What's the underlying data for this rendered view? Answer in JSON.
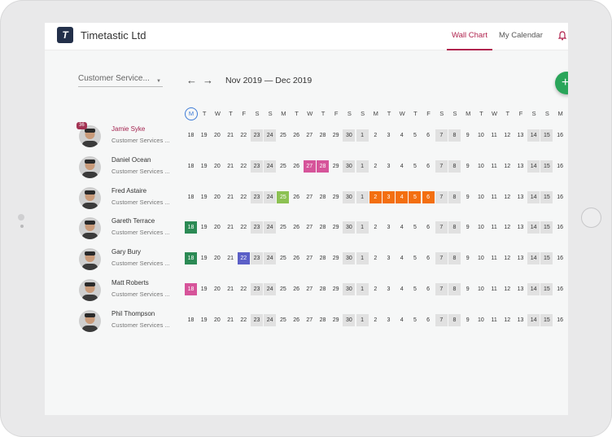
{
  "app": {
    "brand": "Timetastic Ltd",
    "logo_letter": "T"
  },
  "nav": {
    "wall_chart": "Wall Chart",
    "my_calendar": "My Calendar"
  },
  "toolbar": {
    "filter": "Customer Service...",
    "prev_icon": "arrow-left-icon",
    "next_icon": "arrow-right-icon",
    "range": "Nov 2019 — Dec 2019",
    "add_icon": "plus-icon"
  },
  "day_letters": [
    "M",
    "T",
    "W",
    "T",
    "F",
    "S",
    "S",
    "M",
    "T",
    "W",
    "T",
    "F",
    "S",
    "S",
    "M",
    "T",
    "W",
    "T",
    "F",
    "S",
    "S",
    "M",
    "T",
    "W",
    "T",
    "F",
    "S",
    "S",
    "M"
  ],
  "dates": [
    "18",
    "19",
    "20",
    "21",
    "22",
    "23",
    "24",
    "25",
    "26",
    "27",
    "28",
    "29",
    "30",
    "1",
    "2",
    "3",
    "4",
    "5",
    "6",
    "7",
    "8",
    "9",
    "10",
    "11",
    "12",
    "13",
    "14",
    "15",
    "16"
  ],
  "colors": {
    "accent": "#b0234e",
    "green": "#2b8a54",
    "light_green": "#8cc152",
    "pink": "#d6549a",
    "purple": "#5b5fc7",
    "orange": "#f36f10",
    "weekend": "#e1e1e1"
  },
  "people": [
    {
      "name": "Jamie Syke",
      "dept": "Customer Services ...",
      "badge": "36",
      "active": true,
      "avatar_icon": "person-avatar-icon",
      "leave": []
    },
    {
      "name": "Daniel Ocean",
      "dept": "Customer Services ...",
      "avatar_icon": "person-avatar-icon",
      "leave": [
        {
          "day": 9,
          "color": "#d6549a"
        },
        {
          "day": 10,
          "color": "#d6549a"
        }
      ]
    },
    {
      "name": "Fred Astaire",
      "dept": "Customer Services ...",
      "avatar_icon": "person-avatar-icon",
      "leave": [
        {
          "day": 7,
          "color": "#8cc152"
        },
        {
          "day": 14,
          "color": "#f36f10"
        },
        {
          "day": 15,
          "color": "#f36f10"
        },
        {
          "day": 16,
          "color": "#f36f10"
        },
        {
          "day": 17,
          "color": "#f36f10"
        },
        {
          "day": 18,
          "color": "#f36f10"
        }
      ]
    },
    {
      "name": "Gareth Terrace",
      "dept": "Customer Services ...",
      "avatar_icon": "person-avatar-icon",
      "leave": [
        {
          "day": 0,
          "color": "#2b8a54"
        }
      ]
    },
    {
      "name": "Gary Bury",
      "dept": "Customer Services ...",
      "avatar_icon": "person-avatar-icon",
      "leave": [
        {
          "day": 0,
          "color": "#2b8a54"
        },
        {
          "day": 4,
          "color": "#5b5fc7"
        }
      ]
    },
    {
      "name": "Matt Roberts",
      "dept": "Customer Services ...",
      "avatar_icon": "person-avatar-icon",
      "leave": [
        {
          "day": 0,
          "color": "#d6549a"
        }
      ]
    },
    {
      "name": "Phil Thompson",
      "dept": "Customer Services ...",
      "avatar_icon": "person-avatar-icon",
      "leave": []
    }
  ]
}
